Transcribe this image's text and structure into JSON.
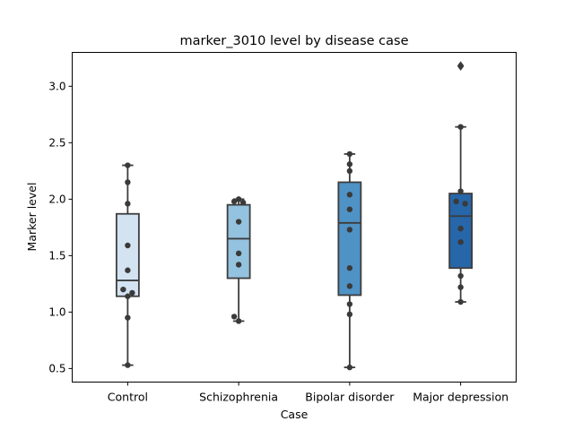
{
  "chart_data": {
    "type": "box",
    "title": "marker_3010 level by disease case",
    "xlabel": "Case",
    "ylabel": "Marker level",
    "ylim": [
      0.38,
      3.3
    ],
    "yticks": [
      0.5,
      1.0,
      1.5,
      2.0,
      2.5,
      3.0
    ],
    "ytick_labels": [
      "0.5",
      "1.0",
      "1.5",
      "2.0",
      "2.5",
      "3.0"
    ],
    "grid": false,
    "categories": [
      "Control",
      "Schizophrenia",
      "Bipolar disorder",
      "Major depression"
    ],
    "colors": [
      "#d3e3f2",
      "#94c3df",
      "#4f92c6",
      "#2666a9"
    ],
    "boxes": [
      {
        "q1": 1.14,
        "median": 1.28,
        "q3": 1.87,
        "whisker_low": 0.53,
        "whisker_high": 2.3,
        "outliers": []
      },
      {
        "q1": 1.3,
        "median": 1.65,
        "q3": 1.95,
        "whisker_low": 0.92,
        "whisker_high": 2.0,
        "outliers": []
      },
      {
        "q1": 1.15,
        "median": 1.79,
        "q3": 2.15,
        "whisker_low": 0.51,
        "whisker_high": 2.4,
        "outliers": []
      },
      {
        "q1": 1.39,
        "median": 1.85,
        "q3": 2.05,
        "whisker_low": 1.09,
        "whisker_high": 2.64,
        "outliers": [
          3.18
        ]
      }
    ],
    "points": [
      [
        2.3,
        2.15,
        1.96,
        1.59,
        1.37,
        1.2,
        1.17,
        1.14,
        0.95,
        0.53
      ],
      [
        2.0,
        1.98,
        1.97,
        1.8,
        1.52,
        1.42,
        0.96,
        0.92
      ],
      [
        2.4,
        2.31,
        2.25,
        2.04,
        1.91,
        1.73,
        1.39,
        1.23,
        1.07,
        0.98,
        0.51
      ],
      [
        3.18,
        2.64,
        2.07,
        1.98,
        1.96,
        1.74,
        1.62,
        1.32,
        1.22,
        1.09
      ]
    ],
    "point_dx": [
      [
        0,
        0,
        0,
        0,
        0,
        -5,
        5,
        0,
        0,
        0
      ],
      [
        0,
        -5,
        5,
        0,
        0,
        0,
        -5,
        0
      ],
      [
        0,
        0,
        0,
        0,
        0,
        0,
        0,
        0,
        0,
        0,
        0
      ],
      [
        0,
        0,
        0,
        -5,
        5,
        0,
        0,
        0,
        0,
        0
      ]
    ]
  }
}
